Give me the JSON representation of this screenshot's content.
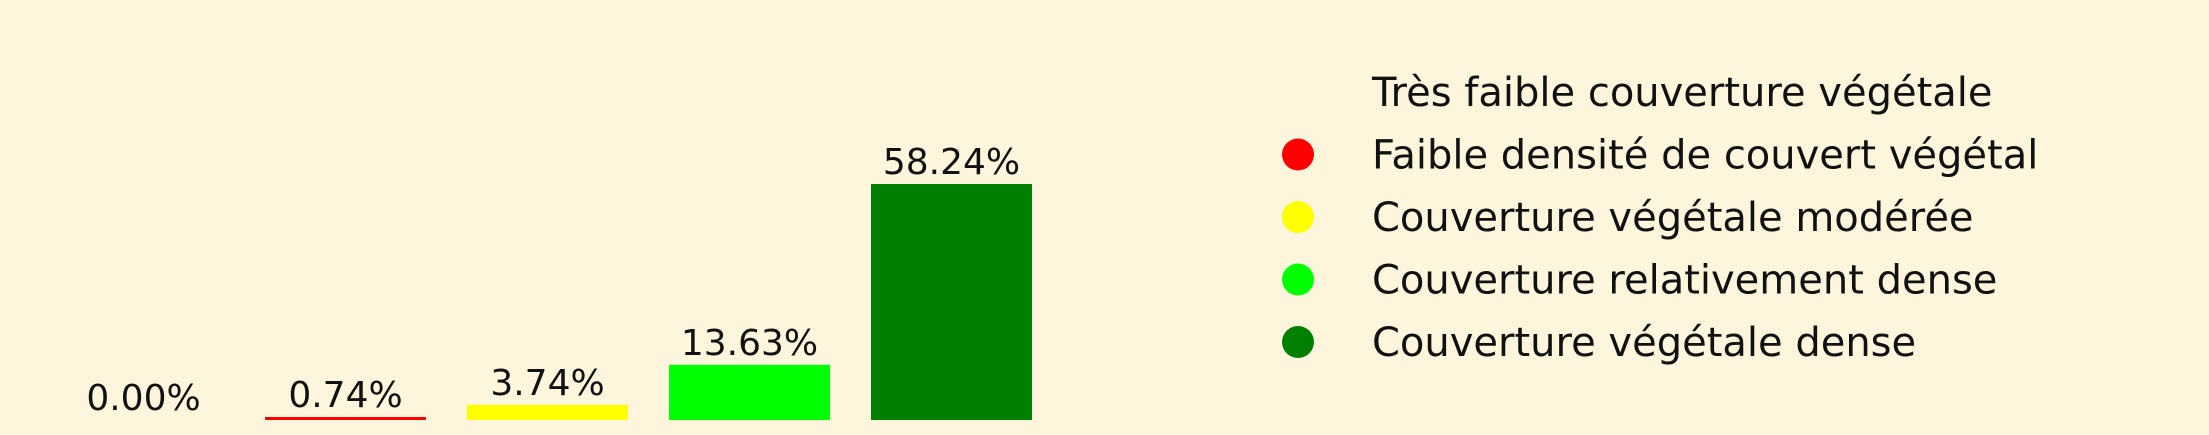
{
  "chart_data": {
    "type": "bar",
    "categories": [
      "Très faible couverture végétale",
      "Faible densité de couvert végétal",
      "Couverture végétale modérée",
      "Couverture relativement dense",
      "Couverture végétale dense"
    ],
    "values": [
      0.0,
      0.74,
      3.74,
      13.63,
      58.24
    ],
    "labels": [
      "0.00%",
      "0.74%",
      "3.74%",
      "13.63%",
      "58.24%"
    ],
    "colors": [
      "#fdf6dc",
      "#ff0000",
      "#ffff00",
      "#00ff00",
      "#008000"
    ],
    "ylim": [
      0,
      58.24
    ],
    "grid": false,
    "legend_position": "right"
  }
}
